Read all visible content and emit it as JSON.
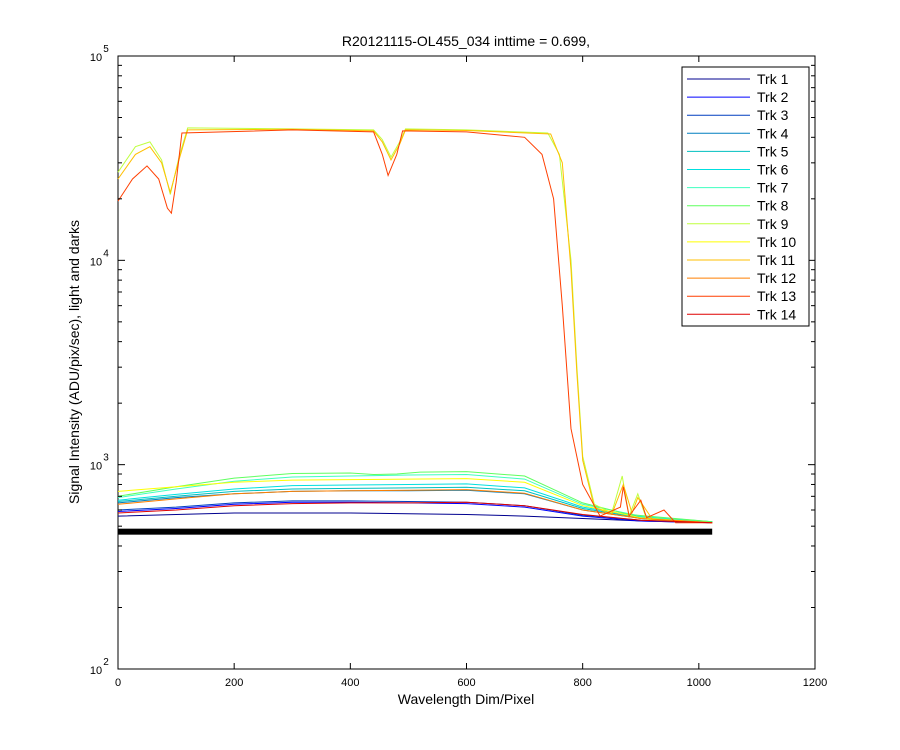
{
  "chart_data": {
    "type": "line",
    "title": "R20121115-OL455_034 inttime = 0.699,",
    "xlabel": "Wavelength Dim/Pixel",
    "ylabel": "Signal Intensity (ADU/pix/sec), light and darks",
    "xlim": [
      0,
      1200
    ],
    "ylim": [
      100,
      100000
    ],
    "yscale": "log",
    "grid": false,
    "legend_position": "top-right",
    "x_ticks": [
      "0",
      "200",
      "400",
      "600",
      "800",
      "1000",
      "1200"
    ],
    "y_ticks": [
      {
        "base": "10",
        "exp": "2",
        "value": 100
      },
      {
        "base": "10",
        "exp": "3",
        "value": 1000
      },
      {
        "base": "10",
        "exp": "4",
        "value": 10000
      },
      {
        "base": "10",
        "exp": "5",
        "value": 100000
      }
    ],
    "dark_level": 470,
    "series": [
      {
        "name": "Trk 1",
        "color": "#00008f",
        "points": [
          [
            0,
            560
          ],
          [
            100,
            570
          ],
          [
            200,
            580
          ],
          [
            300,
            580
          ],
          [
            400,
            580
          ],
          [
            500,
            575
          ],
          [
            600,
            570
          ],
          [
            700,
            560
          ],
          [
            800,
            545
          ],
          [
            900,
            530
          ],
          [
            1023,
            520
          ]
        ]
      },
      {
        "name": "Trk 2",
        "color": "#0000ff",
        "points": [
          [
            0,
            590
          ],
          [
            100,
            610
          ],
          [
            200,
            640
          ],
          [
            300,
            655
          ],
          [
            400,
            655
          ],
          [
            500,
            650
          ],
          [
            600,
            645
          ],
          [
            700,
            620
          ],
          [
            800,
            560
          ],
          [
            900,
            530
          ],
          [
            1023,
            520
          ]
        ]
      },
      {
        "name": "Trk 3",
        "color": "#003fbf",
        "points": [
          [
            0,
            600
          ],
          [
            100,
            620
          ],
          [
            200,
            650
          ],
          [
            300,
            665
          ],
          [
            400,
            665
          ],
          [
            500,
            660
          ],
          [
            600,
            655
          ],
          [
            700,
            630
          ],
          [
            800,
            565
          ],
          [
            900,
            535
          ],
          [
            1023,
            520
          ]
        ]
      },
      {
        "name": "Trk 4",
        "color": "#007fbf",
        "points": [
          [
            0,
            650
          ],
          [
            100,
            690
          ],
          [
            200,
            720
          ],
          [
            300,
            740
          ],
          [
            400,
            745
          ],
          [
            500,
            745
          ],
          [
            600,
            750
          ],
          [
            700,
            720
          ],
          [
            800,
            600
          ],
          [
            900,
            545
          ],
          [
            1023,
            525
          ]
        ]
      },
      {
        "name": "Trk 5",
        "color": "#00bfbf",
        "points": [
          [
            0,
            660
          ],
          [
            100,
            700
          ],
          [
            200,
            740
          ],
          [
            300,
            760
          ],
          [
            400,
            765
          ],
          [
            500,
            770
          ],
          [
            600,
            775
          ],
          [
            700,
            745
          ],
          [
            800,
            610
          ],
          [
            900,
            550
          ],
          [
            1023,
            525
          ]
        ]
      },
      {
        "name": "Trk 6",
        "color": "#00dfdf",
        "points": [
          [
            0,
            670
          ],
          [
            100,
            715
          ],
          [
            200,
            760
          ],
          [
            300,
            790
          ],
          [
            400,
            795
          ],
          [
            500,
            800
          ],
          [
            600,
            805
          ],
          [
            700,
            770
          ],
          [
            800,
            620
          ],
          [
            900,
            555
          ],
          [
            1023,
            525
          ]
        ]
      },
      {
        "name": "Trk 7",
        "color": "#3fffbf",
        "points": [
          [
            0,
            690
          ],
          [
            100,
            760
          ],
          [
            200,
            830
          ],
          [
            300,
            870
          ],
          [
            400,
            880
          ],
          [
            500,
            890
          ],
          [
            600,
            895
          ],
          [
            700,
            850
          ],
          [
            800,
            640
          ],
          [
            900,
            560
          ],
          [
            1023,
            525
          ]
        ]
      },
      {
        "name": "Trk 8",
        "color": "#5fff5f",
        "points": [
          [
            0,
            700
          ],
          [
            100,
            780
          ],
          [
            200,
            860
          ],
          [
            300,
            905
          ],
          [
            400,
            910
          ],
          [
            440,
            895
          ],
          [
            480,
            900
          ],
          [
            520,
            920
          ],
          [
            600,
            925
          ],
          [
            700,
            880
          ],
          [
            800,
            650
          ],
          [
            880,
            570
          ],
          [
            1023,
            525
          ]
        ]
      },
      {
        "name": "Trk 9",
        "color": "#bfff3f",
        "points": [
          [
            0,
            27000
          ],
          [
            30,
            36000
          ],
          [
            55,
            38000
          ],
          [
            75,
            31000
          ],
          [
            90,
            21000
          ],
          [
            105,
            32000
          ],
          [
            120,
            44500
          ],
          [
            300,
            44000
          ],
          [
            440,
            43500
          ],
          [
            455,
            39000
          ],
          [
            470,
            32000
          ],
          [
            485,
            38000
          ],
          [
            495,
            44000
          ],
          [
            600,
            43500
          ],
          [
            740,
            42000
          ],
          [
            760,
            33000
          ],
          [
            780,
            10000
          ],
          [
            790,
            3000
          ],
          [
            800,
            1100
          ],
          [
            820,
            640
          ],
          [
            850,
            580
          ],
          [
            868,
            880
          ],
          [
            880,
            560
          ],
          [
            895,
            720
          ],
          [
            910,
            540
          ],
          [
            1023,
            520
          ]
        ]
      },
      {
        "name": "Trk 10",
        "color": "#ffff00",
        "points": [
          [
            0,
            740
          ],
          [
            100,
            780
          ],
          [
            200,
            820
          ],
          [
            300,
            840
          ],
          [
            400,
            845
          ],
          [
            500,
            850
          ],
          [
            600,
            855
          ],
          [
            700,
            820
          ],
          [
            800,
            630
          ],
          [
            900,
            550
          ],
          [
            1023,
            520
          ]
        ]
      },
      {
        "name": "Trk 11",
        "color": "#ffbf00",
        "points": [
          [
            0,
            25000
          ],
          [
            30,
            33000
          ],
          [
            55,
            36000
          ],
          [
            75,
            30000
          ],
          [
            90,
            21500
          ],
          [
            105,
            31000
          ],
          [
            120,
            43500
          ],
          [
            300,
            43800
          ],
          [
            440,
            43000
          ],
          [
            455,
            38000
          ],
          [
            470,
            31000
          ],
          [
            485,
            37000
          ],
          [
            495,
            43500
          ],
          [
            600,
            43200
          ],
          [
            745,
            41500
          ],
          [
            765,
            30000
          ],
          [
            780,
            9000
          ],
          [
            790,
            2800
          ],
          [
            800,
            1050
          ],
          [
            820,
            620
          ],
          [
            850,
            570
          ],
          [
            870,
            800
          ],
          [
            885,
            580
          ],
          [
            895,
            690
          ],
          [
            920,
            540
          ],
          [
            1023,
            520
          ]
        ]
      },
      {
        "name": "Trk 12",
        "color": "#ff7f00",
        "points": [
          [
            0,
            640
          ],
          [
            100,
            680
          ],
          [
            200,
            720
          ],
          [
            300,
            740
          ],
          [
            400,
            745
          ],
          [
            500,
            750
          ],
          [
            600,
            755
          ],
          [
            700,
            725
          ],
          [
            800,
            600
          ],
          [
            900,
            545
          ],
          [
            1023,
            520
          ]
        ]
      },
      {
        "name": "Trk 13",
        "color": "#ff3f00",
        "points": [
          [
            0,
            19500
          ],
          [
            25,
            25000
          ],
          [
            50,
            29000
          ],
          [
            70,
            25000
          ],
          [
            85,
            18000
          ],
          [
            92,
            17000
          ],
          [
            100,
            24000
          ],
          [
            110,
            42000
          ],
          [
            300,
            43500
          ],
          [
            440,
            42500
          ],
          [
            455,
            33000
          ],
          [
            465,
            26000
          ],
          [
            480,
            33000
          ],
          [
            490,
            43000
          ],
          [
            600,
            42500
          ],
          [
            700,
            40000
          ],
          [
            730,
            33000
          ],
          [
            750,
            20000
          ],
          [
            765,
            6000
          ],
          [
            780,
            1500
          ],
          [
            800,
            800
          ],
          [
            830,
            560
          ],
          [
            865,
            620
          ],
          [
            870,
            780
          ],
          [
            880,
            560
          ],
          [
            900,
            670
          ],
          [
            910,
            550
          ],
          [
            940,
            600
          ],
          [
            960,
            520
          ],
          [
            1023,
            520
          ]
        ]
      },
      {
        "name": "Trk 14",
        "color": "#df0000",
        "points": [
          [
            0,
            580
          ],
          [
            100,
            600
          ],
          [
            200,
            630
          ],
          [
            300,
            645
          ],
          [
            400,
            650
          ],
          [
            500,
            650
          ],
          [
            600,
            655
          ],
          [
            700,
            630
          ],
          [
            800,
            570
          ],
          [
            900,
            535
          ],
          [
            1023,
            520
          ]
        ]
      }
    ]
  }
}
